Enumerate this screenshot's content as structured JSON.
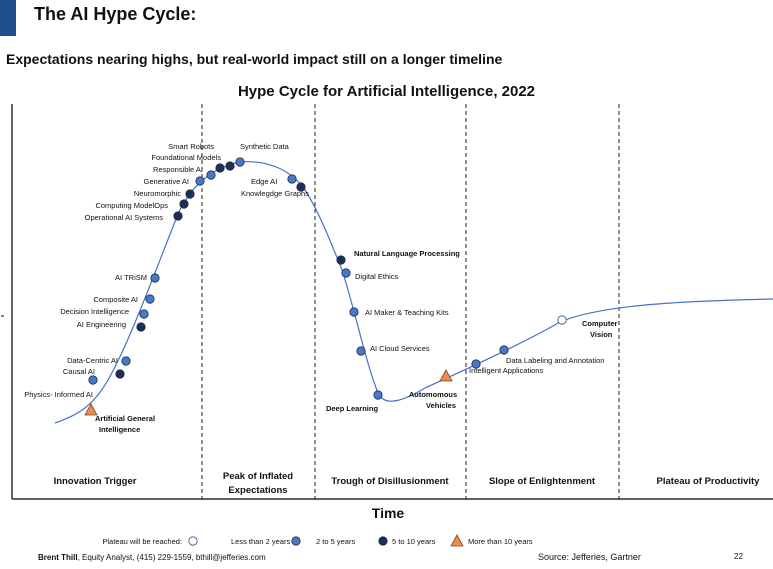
{
  "header": {
    "slide_title": "The AI Hype Cycle:",
    "headline": "Expectations nearing highs, but real-world impact still on a longer timeline"
  },
  "chart_data": {
    "type": "line",
    "title": "Hype Cycle for Artificial Intelligence, 2022",
    "xlabel": "Time",
    "ylabel": "",
    "grid": false,
    "phases": [
      "Innovation Trigger",
      "Peak of Inflated Expectations",
      "Trough of Disillusionment",
      "Slope of Enlightenment",
      "Plateau of Productivity"
    ],
    "legend": {
      "title": "Plateau will be reached:",
      "placement": "bottom",
      "items": [
        {
          "key": "lt2",
          "label": "Less than 2 years",
          "symbol": "open-circle",
          "color": "#ffffff"
        },
        {
          "key": "2to5",
          "label": "2 to 5 years",
          "symbol": "circle",
          "color": "#4a78c9"
        },
        {
          "key": "5to10",
          "label": "5 to 10 years",
          "symbol": "circle",
          "color": "#1e2f55"
        },
        {
          "key": "gt10",
          "label": "More than 10 years",
          "symbol": "triangle",
          "color": "#e88d4c"
        }
      ]
    },
    "technologies": [
      {
        "name": "Artificial General Intelligence",
        "category": "gt10"
      },
      {
        "name": "Physics- Informed AI",
        "category": "2to5"
      },
      {
        "name": "Causal AI",
        "category": "5to10"
      },
      {
        "name": "Data-Centric AI",
        "category": "2to5"
      },
      {
        "name": "AI Engineering",
        "category": "5to10"
      },
      {
        "name": "Decision Intelligence",
        "category": "2to5"
      },
      {
        "name": "Composite AI",
        "category": "2to5"
      },
      {
        "name": "AI TRiSM",
        "category": "2to5"
      },
      {
        "name": "Operational AI Systems",
        "category": "5to10"
      },
      {
        "name": "Computing ModelOps",
        "category": "5to10"
      },
      {
        "name": "Neuromorphic",
        "category": "5to10"
      },
      {
        "name": "Generative AI",
        "category": "2to5"
      },
      {
        "name": "Responsible AI",
        "category": "2to5"
      },
      {
        "name": "Foundational Models",
        "category": "5to10"
      },
      {
        "name": "Smart Robots",
        "category": "5to10"
      },
      {
        "name": "Synthetic Data",
        "category": "2to5"
      },
      {
        "name": "Edge AI",
        "category": "2to5"
      },
      {
        "name": "Knowlegdge Graphs",
        "category": "5to10"
      },
      {
        "name": "Natural Language Processing",
        "category": "5to10"
      },
      {
        "name": "Digital Ethics",
        "category": "2to5"
      },
      {
        "name": "AI Maker & Teaching Kits",
        "category": "2to5"
      },
      {
        "name": "AI Cloud Services",
        "category": "2to5"
      },
      {
        "name": "Deep Learning",
        "category": "2to5"
      },
      {
        "name": "Automomous Vehicles",
        "category": "gt10"
      },
      {
        "name": "Intelligent Applications",
        "category": "2to5"
      },
      {
        "name": "Data Labeling and Annotation",
        "category": "2to5"
      },
      {
        "name": "Computer Vision",
        "category": "lt2"
      }
    ]
  },
  "footer": {
    "author": "Brent Thill",
    "author_details": ", Equity Analyst, (415) 229-1559, bthill@jefferies.com",
    "source": "Source: Jefferies, Gartner",
    "page": "22"
  }
}
